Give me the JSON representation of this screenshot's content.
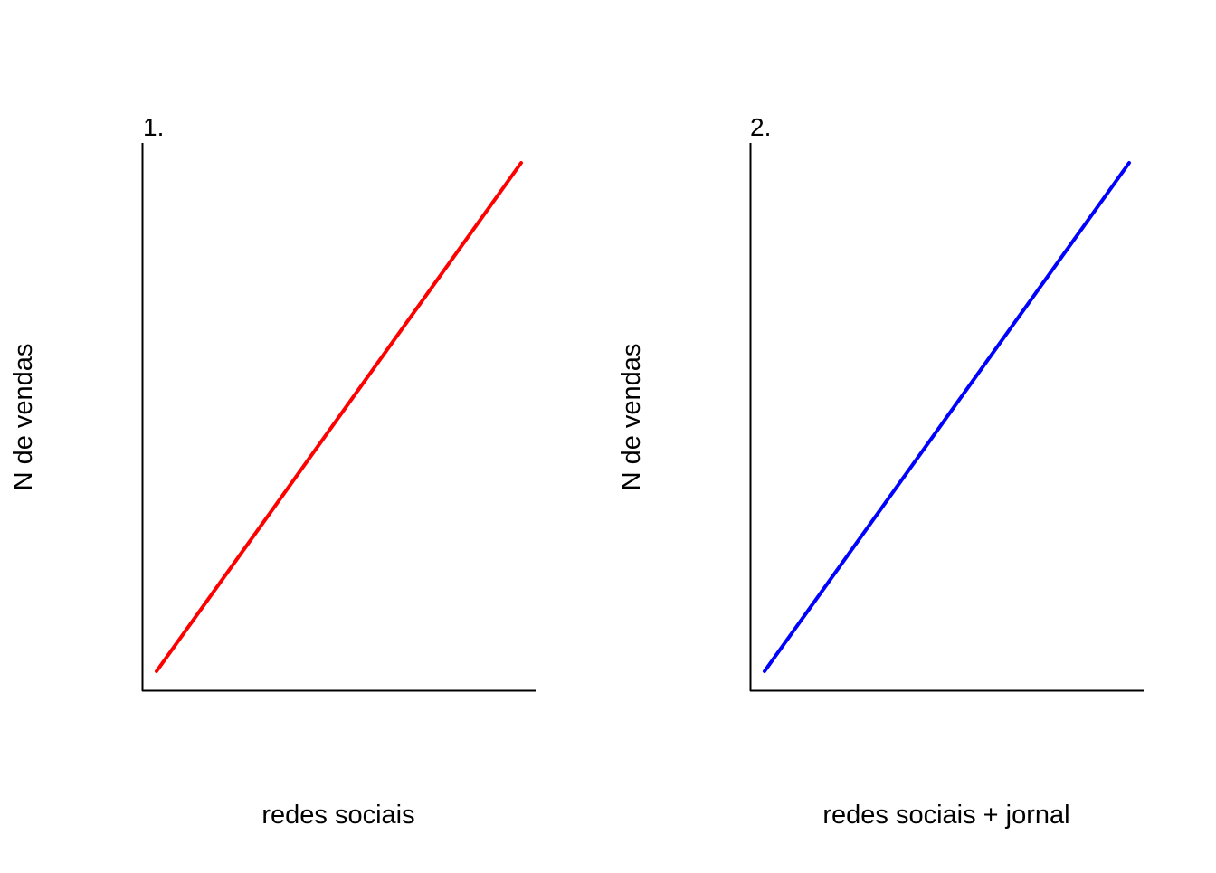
{
  "chart_data": [
    {
      "type": "line",
      "panel_label": "1.",
      "xlabel": "redes sociais",
      "ylabel": "N de vendas",
      "ticks_shown": false,
      "grid": false,
      "series": [
        {
          "x": [
            0,
            1
          ],
          "y": [
            0,
            1
          ],
          "color": "#ff0000"
        }
      ]
    },
    {
      "type": "line",
      "panel_label": "2.",
      "xlabel": "redes sociais + jornal",
      "ylabel": "N de vendas",
      "ticks_shown": false,
      "grid": false,
      "series": [
        {
          "x": [
            0,
            1
          ],
          "y": [
            0,
            1
          ],
          "color": "#0000ff"
        }
      ]
    }
  ]
}
